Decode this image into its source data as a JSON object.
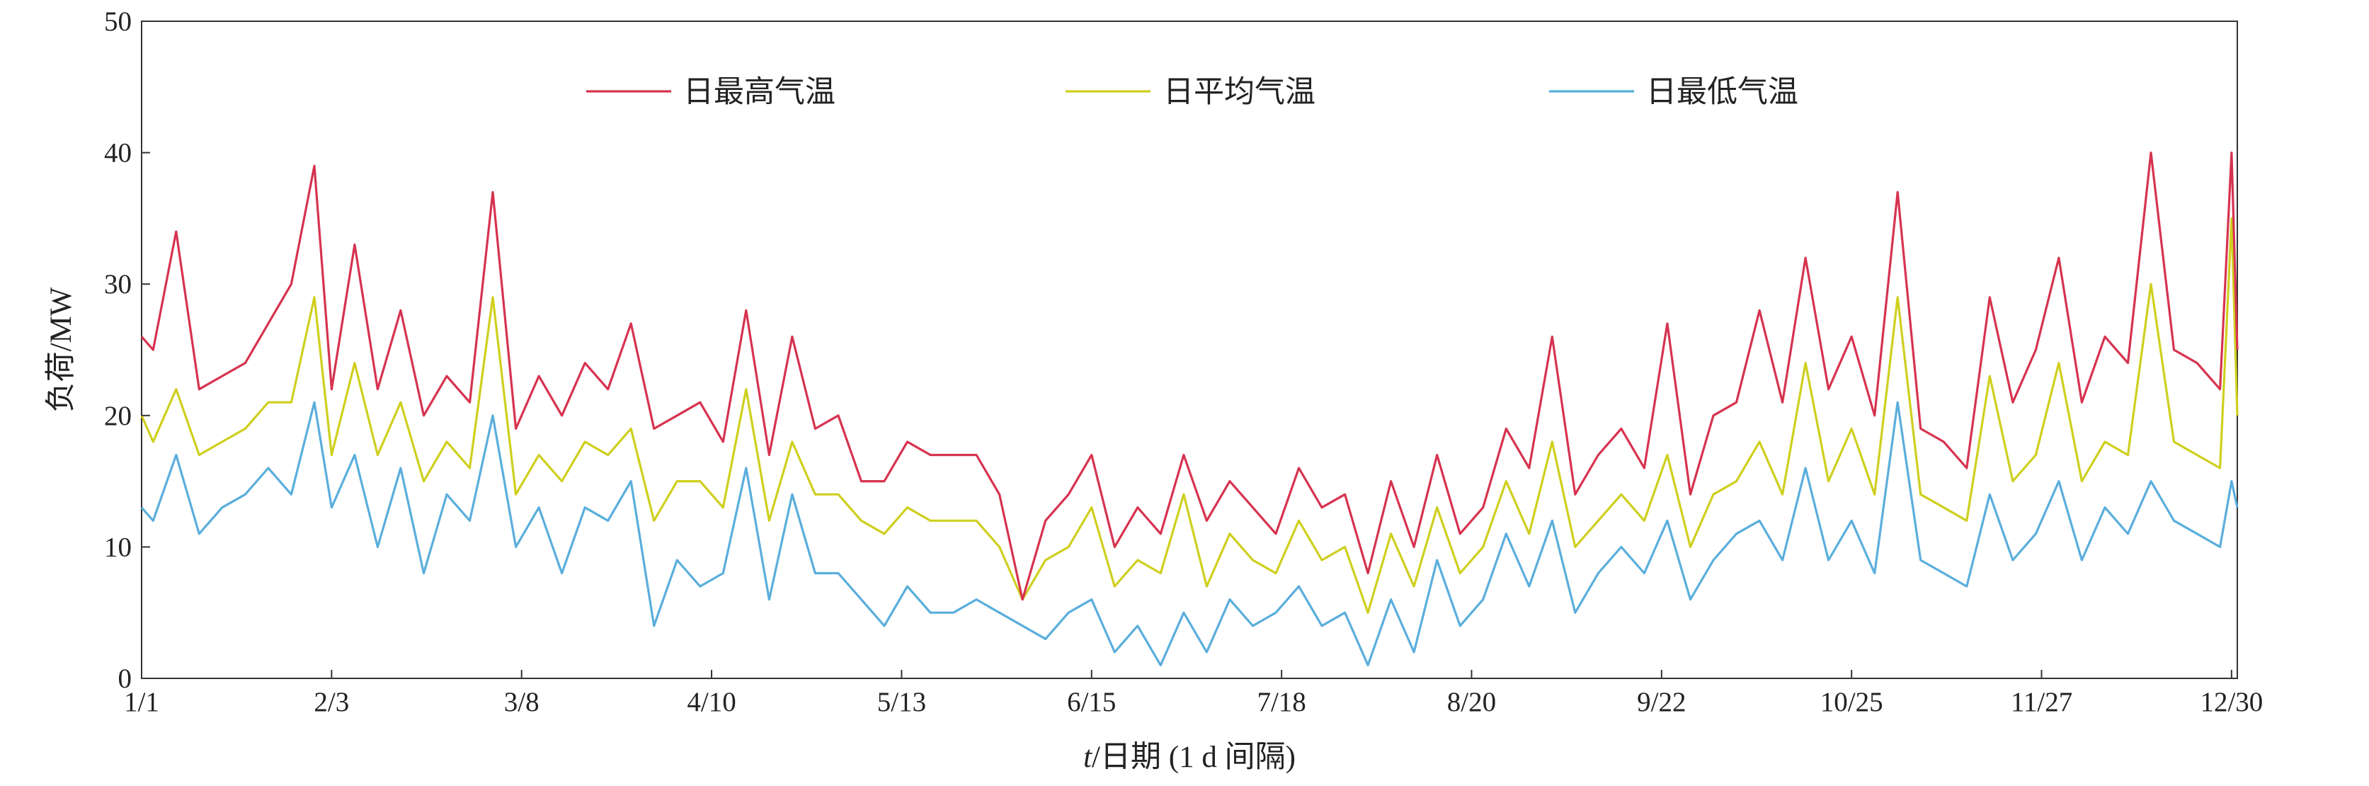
{
  "chart_data": {
    "type": "line",
    "title": "",
    "xlabel_italic": "t",
    "xlabel_rest": "/日期 (1 d 间隔)",
    "ylabel": "负荷/MW",
    "ylim": [
      0,
      50
    ],
    "yticks": [
      "0",
      "10",
      "20",
      "30",
      "40",
      "50"
    ],
    "xticks": [
      {
        "label": "1/1",
        "day": 1
      },
      {
        "label": "2/3",
        "day": 34
      },
      {
        "label": "3/8",
        "day": 67
      },
      {
        "label": "4/10",
        "day": 100
      },
      {
        "label": "5/13",
        "day": 133
      },
      {
        "label": "6/15",
        "day": 166
      },
      {
        "label": "7/18",
        "day": 199
      },
      {
        "label": "8/20",
        "day": 232
      },
      {
        "label": "9/22",
        "day": 265
      },
      {
        "label": "10/25",
        "day": 298
      },
      {
        "label": "11/27",
        "day": 331
      },
      {
        "label": "12/30",
        "day": 364
      }
    ],
    "xlim": [
      1,
      365
    ],
    "grid": false,
    "legend_position": "top",
    "series_profile_note": "",
    "series": [
      {
        "name": "日最高气温",
        "color": "#d6334f",
        "x": [
          1,
          3,
          7,
          11,
          15,
          19,
          23,
          27,
          31,
          34,
          38,
          42,
          46,
          50,
          54,
          58,
          62,
          66,
          70,
          74,
          78,
          82,
          86,
          90,
          94,
          98,
          102,
          106,
          110,
          114,
          118,
          122,
          126,
          130,
          134,
          138,
          142,
          146,
          150,
          154,
          158,
          162,
          166,
          170,
          174,
          178,
          182,
          186,
          190,
          194,
          198,
          202,
          206,
          210,
          214,
          218,
          222,
          226,
          230,
          234,
          238,
          242,
          246,
          250,
          254,
          258,
          262,
          266,
          270,
          274,
          278,
          282,
          286,
          290,
          294,
          298,
          302,
          306,
          310,
          314,
          318,
          322,
          326,
          330,
          334,
          338,
          342,
          346,
          350,
          354,
          358,
          362,
          364,
          365
        ],
        "values": [
          26,
          25,
          34,
          22,
          23,
          24,
          27,
          30,
          39,
          22,
          33,
          22,
          28,
          20,
          23,
          21,
          37,
          19,
          23,
          20,
          24,
          22,
          27,
          19,
          20,
          21,
          18,
          28,
          17,
          26,
          19,
          20,
          15,
          15,
          18,
          17,
          17,
          17,
          14,
          6,
          12,
          14,
          17,
          10,
          13,
          11,
          17,
          12,
          15,
          13,
          11,
          16,
          13,
          14,
          8,
          15,
          10,
          17,
          11,
          13,
          19,
          16,
          26,
          14,
          17,
          19,
          16,
          27,
          14,
          20,
          21,
          28,
          21,
          32,
          22,
          26,
          20,
          37,
          19,
          18,
          16,
          29,
          21,
          25,
          32,
          21,
          26,
          24,
          40,
          25,
          24,
          22,
          40,
          25
        ]
      },
      {
        "name": "日平均气温",
        "color": "#cfcf1f",
        "x": [
          1,
          3,
          7,
          11,
          15,
          19,
          23,
          27,
          31,
          34,
          38,
          42,
          46,
          50,
          54,
          58,
          62,
          66,
          70,
          74,
          78,
          82,
          86,
          90,
          94,
          98,
          102,
          106,
          110,
          114,
          118,
          122,
          126,
          130,
          134,
          138,
          142,
          146,
          150,
          154,
          158,
          162,
          166,
          170,
          174,
          178,
          182,
          186,
          190,
          194,
          198,
          202,
          206,
          210,
          214,
          218,
          222,
          226,
          230,
          234,
          238,
          242,
          246,
          250,
          254,
          258,
          262,
          266,
          270,
          274,
          278,
          282,
          286,
          290,
          294,
          298,
          302,
          306,
          310,
          314,
          318,
          322,
          326,
          330,
          334,
          338,
          342,
          346,
          350,
          354,
          358,
          362,
          364,
          365
        ],
        "values": [
          20,
          18,
          22,
          17,
          18,
          19,
          21,
          21,
          29,
          17,
          24,
          17,
          21,
          15,
          18,
          16,
          29,
          14,
          17,
          15,
          18,
          17,
          19,
          12,
          15,
          15,
          13,
          22,
          12,
          18,
          14,
          14,
          12,
          11,
          13,
          12,
          12,
          12,
          10,
          6,
          9,
          10,
          13,
          7,
          9,
          8,
          14,
          7,
          11,
          9,
          8,
          12,
          9,
          10,
          5,
          11,
          7,
          13,
          8,
          10,
          15,
          11,
          18,
          10,
          12,
          14,
          12,
          17,
          10,
          14,
          15,
          18,
          14,
          24,
          15,
          19,
          14,
          29,
          14,
          13,
          12,
          23,
          15,
          17,
          24,
          15,
          18,
          17,
          30,
          18,
          17,
          16,
          35,
          20
        ]
      },
      {
        "name": "日最低气温",
        "color": "#5aaedc",
        "x": [
          1,
          3,
          7,
          11,
          15,
          19,
          23,
          27,
          31,
          34,
          38,
          42,
          46,
          50,
          54,
          58,
          62,
          66,
          70,
          74,
          78,
          82,
          86,
          90,
          94,
          98,
          102,
          106,
          110,
          114,
          118,
          122,
          126,
          130,
          134,
          138,
          142,
          146,
          150,
          154,
          158,
          162,
          166,
          170,
          174,
          178,
          182,
          186,
          190,
          194,
          198,
          202,
          206,
          210,
          214,
          218,
          222,
          226,
          230,
          234,
          238,
          242,
          246,
          250,
          254,
          258,
          262,
          266,
          270,
          274,
          278,
          282,
          286,
          290,
          294,
          298,
          302,
          306,
          310,
          314,
          318,
          322,
          326,
          330,
          334,
          338,
          342,
          346,
          350,
          354,
          358,
          362,
          364,
          365
        ],
        "values": [
          13,
          12,
          17,
          11,
          13,
          14,
          16,
          14,
          21,
          13,
          17,
          10,
          16,
          8,
          14,
          12,
          20,
          10,
          13,
          8,
          13,
          12,
          15,
          4,
          9,
          7,
          8,
          16,
          6,
          14,
          8,
          8,
          6,
          4,
          7,
          5,
          5,
          6,
          5,
          4,
          3,
          5,
          6,
          2,
          4,
          1,
          5,
          2,
          6,
          4,
          5,
          7,
          4,
          5,
          1,
          6,
          2,
          9,
          4,
          6,
          11,
          7,
          12,
          5,
          8,
          10,
          8,
          12,
          6,
          9,
          11,
          12,
          9,
          16,
          9,
          12,
          8,
          21,
          9,
          8,
          7,
          14,
          9,
          11,
          15,
          9,
          13,
          11,
          15,
          12,
          11,
          10,
          15,
          13
        ]
      }
    ]
  }
}
